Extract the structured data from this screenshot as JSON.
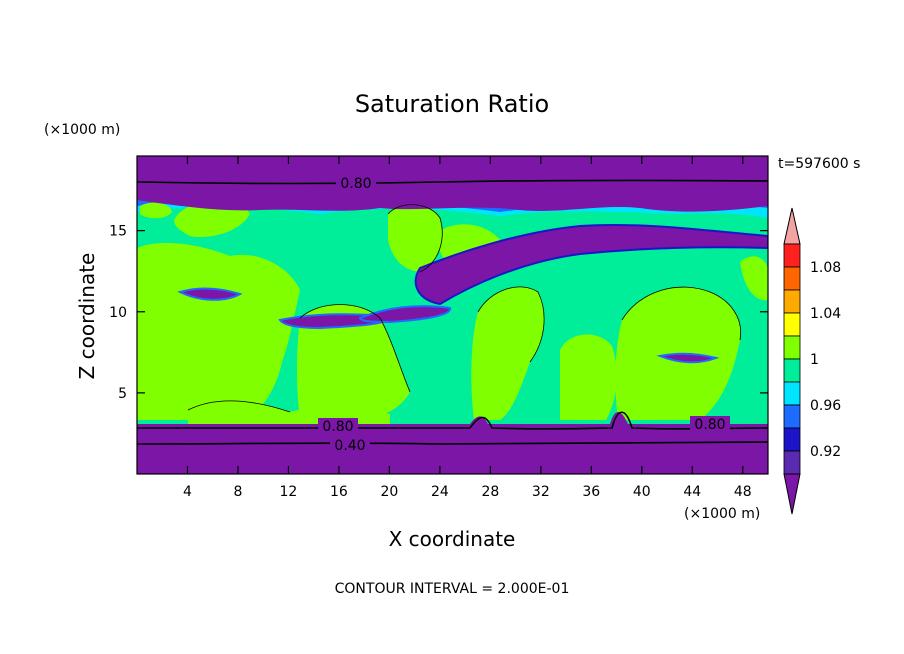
{
  "chart_data": {
    "type": "heatmap",
    "title": "Saturation Ratio",
    "xlabel": "X coordinate",
    "ylabel": "Z coordinate",
    "x_unit": "(×1000 m)",
    "y_unit": "(×1000 m)",
    "time_label": "t=597600 s",
    "footer": "CONTOUR INTERVAL = 2.000E-01",
    "xlim": [
      0,
      50
    ],
    "ylim": [
      0,
      19.6
    ],
    "x_ticks": [
      4,
      8,
      12,
      16,
      20,
      24,
      28,
      32,
      36,
      40,
      44,
      48
    ],
    "y_ticks": [
      5,
      10,
      15
    ],
    "colorbar": {
      "labels": [
        {
          "value": 1.08,
          "text": "1.08"
        },
        {
          "value": 1.04,
          "text": "1.04"
        },
        {
          "value": 1.0,
          "text": "1"
        },
        {
          "value": 0.96,
          "text": "0.96"
        },
        {
          "value": 0.92,
          "text": "0.92"
        }
      ],
      "bins": [
        {
          "range": [
            1.1,
            1.12
          ],
          "color": "#f4a3a3"
        },
        {
          "range": [
            1.08,
            1.1
          ],
          "color": "#ff2020"
        },
        {
          "range": [
            1.06,
            1.08
          ],
          "color": "#ff6600"
        },
        {
          "range": [
            1.04,
            1.06
          ],
          "color": "#ffaa00"
        },
        {
          "range": [
            1.02,
            1.04
          ],
          "color": "#ffff00"
        },
        {
          "range": [
            1.0,
            1.02
          ],
          "color": "#80ff00"
        },
        {
          "range": [
            0.98,
            1.0
          ],
          "color": "#00ee99"
        },
        {
          "range": [
            0.96,
            0.98
          ],
          "color": "#00e5ff"
        },
        {
          "range": [
            0.94,
            0.96
          ],
          "color": "#1e6cff"
        },
        {
          "range": [
            0.92,
            0.94
          ],
          "color": "#1c14c8"
        },
        {
          "range": [
            0.9,
            0.92
          ],
          "color": "#5a2ab0"
        },
        {
          "range": [
            0.0,
            0.9
          ],
          "color": "#7b16a6"
        }
      ]
    },
    "contour_labels": [
      {
        "text": "0.80",
        "x": 22,
        "z": 18.2
      },
      {
        "text": "0.80",
        "x": 16,
        "z": 2.8
      },
      {
        "text": "0.80",
        "x": 46,
        "z": 2.9
      },
      {
        "text": "0.40",
        "x": 17,
        "z": 1.7
      }
    ],
    "regions": {
      "dry_layer_top_z": [
        18.4,
        19.6
      ],
      "boundary_layer_z": [
        0,
        3.2
      ],
      "moist_band_z": [
        3.2,
        16.5
      ],
      "upper_layer_z": [
        16.5,
        18.4
      ]
    },
    "colors": {
      "dry": "#7b16a6",
      "near_sat": "#00ee99",
      "sat": "#80ff00",
      "blue": "#1e6cff",
      "cyan": "#00e5ff",
      "navy": "#1c14c8"
    }
  }
}
